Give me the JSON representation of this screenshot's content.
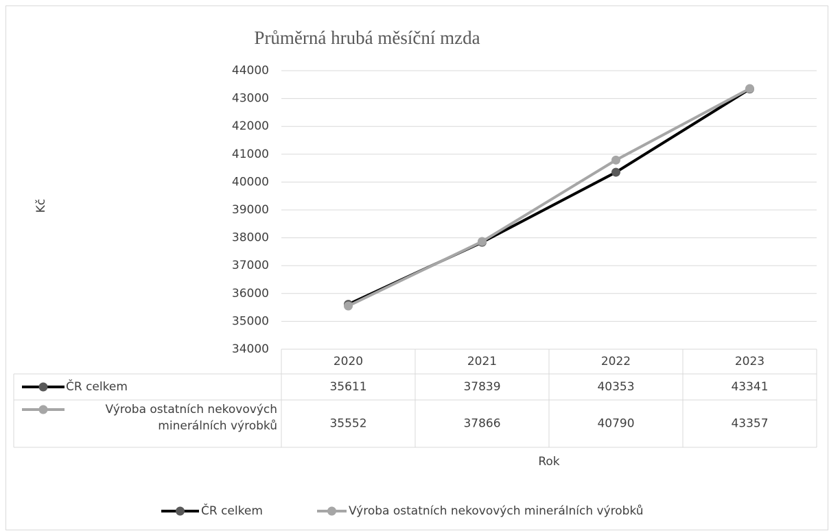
{
  "chart_data": {
    "type": "line",
    "title": "Průměrná hrubá měsíční mzda",
    "ylabel": "Kč",
    "xlabel": "Rok",
    "categories": [
      "2020",
      "2021",
      "2022",
      "2023"
    ],
    "series": [
      {
        "name": "ČR celkem",
        "color": "#000000",
        "marker_color": "#595959",
        "values": [
          35611,
          37839,
          40353,
          43341
        ]
      },
      {
        "name": "Výroba ostatních nekovových minerálních výrobků",
        "color": "#a6a6a6",
        "marker_color": "#a6a6a6",
        "values": [
          35552,
          37866,
          40790,
          43357
        ]
      }
    ],
    "ylim": [
      34000,
      44000
    ],
    "yticks": [
      34000,
      35000,
      36000,
      37000,
      38000,
      39000,
      40000,
      41000,
      42000,
      43000,
      44000
    ],
    "grid": true,
    "data_table": true,
    "legend": "bottom"
  }
}
